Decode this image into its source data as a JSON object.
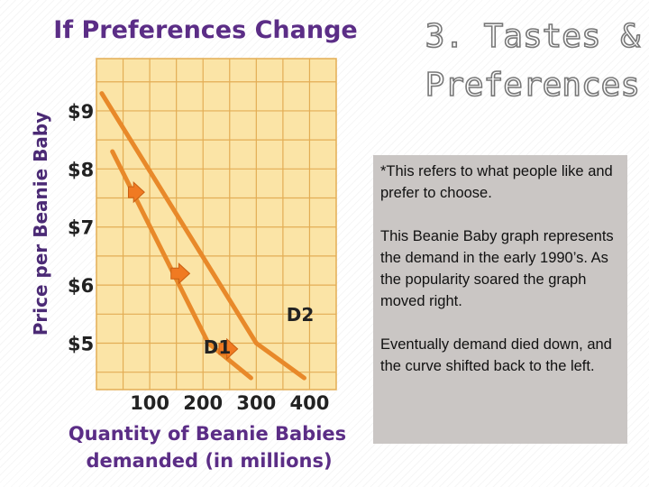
{
  "slide": {
    "title_line1": "3.  Tastes &",
    "title_line2": "Preferences",
    "paragraphs": [
      "*This refers to what people like and prefer to choose.",
      "This Beanie Baby graph represents the demand in the early 1990’s.  As the popularity soared the graph moved right.",
      "Eventually  demand died down, and the curve shifted back to the left."
    ]
  },
  "chart_data": {
    "type": "line",
    "title": "If Preferences Change",
    "ylabel": "Price per Beanie Baby",
    "xlabel_line1": "Quantity of Beanie Babies",
    "xlabel_line2": "demanded (in millions)",
    "y_ticks": [
      9,
      8,
      7,
      6,
      5
    ],
    "y_tick_labels": [
      "$9",
      "$8",
      "$7",
      "$6",
      "$5"
    ],
    "x_ticks": [
      100,
      200,
      300,
      400
    ],
    "x_tick_labels": [
      "100",
      "200",
      "300",
      "400"
    ],
    "xlim": [
      0,
      450
    ],
    "ylim": [
      4.2,
      9.9
    ],
    "grid": true,
    "series": [
      {
        "name": "D1",
        "points": [
          [
            30,
            8.3
          ],
          [
            210,
            5.0
          ],
          [
            290,
            4.4
          ]
        ]
      },
      {
        "name": "D2",
        "points": [
          [
            10,
            9.3
          ],
          [
            300,
            5.0
          ],
          [
            390,
            4.4
          ]
        ]
      }
    ],
    "shift_arrows": [
      {
        "from": [
          60,
          7.6
        ],
        "to": [
          90,
          7.6
        ]
      },
      {
        "from": [
          140,
          6.2
        ],
        "to": [
          175,
          6.2
        ]
      },
      {
        "from": [
          230,
          4.9
        ],
        "to": [
          265,
          4.9
        ]
      }
    ],
    "colors": {
      "title": "#5b2d86",
      "axis_text": "#4b2a75",
      "grid_bg": "#fbe4a6",
      "grid_line": "#e3ad55",
      "curve": "#e8892a",
      "arrow": "#f07a22",
      "tick_text": "#222222"
    }
  }
}
